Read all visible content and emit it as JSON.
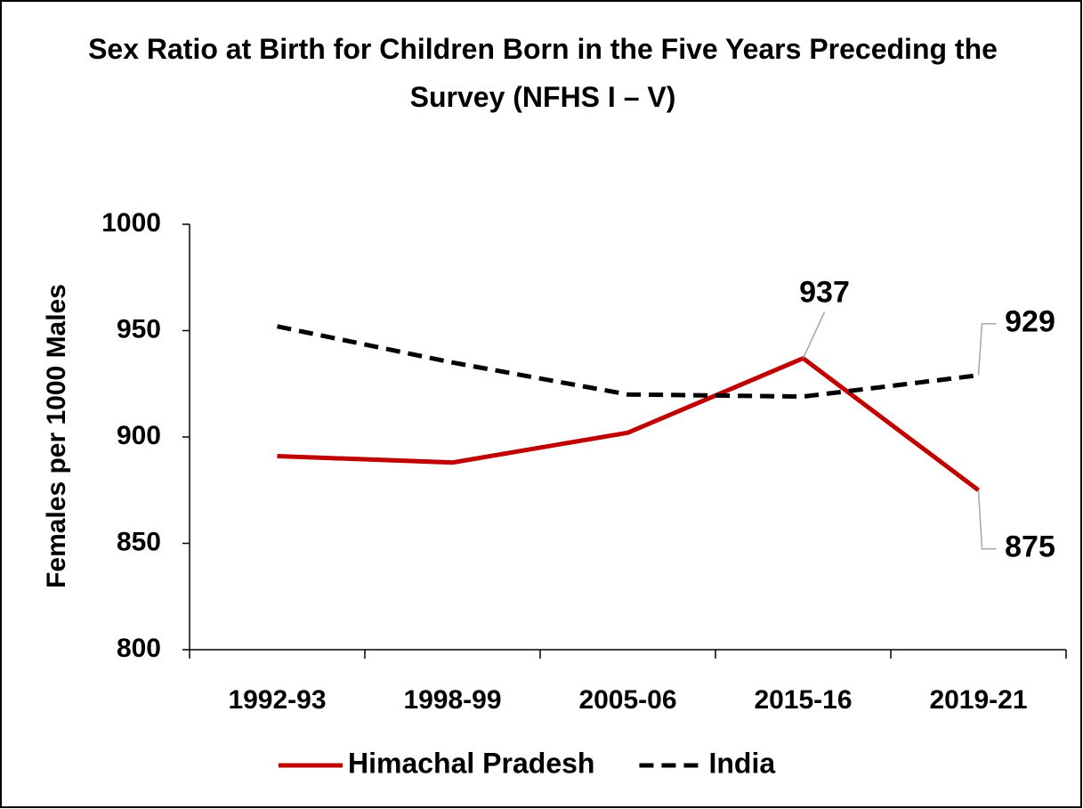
{
  "chart_data": {
    "type": "line",
    "title": "Sex Ratio at Birth for Children Born in the Five Years Preceding the Survey (NFHS I – V)",
    "y_label": "Females per 1000 Males",
    "categories": [
      "1992-93",
      "1998-99",
      "2005-06",
      "2015-16",
      "2019-21"
    ],
    "series": [
      {
        "name": "Himachal Pradesh",
        "color": "#c00000",
        "dash": false,
        "values": [
          891,
          888,
          902,
          937,
          875
        ],
        "value_labels": [
          null,
          null,
          null,
          "937",
          "875"
        ]
      },
      {
        "name": "India",
        "color": "#000000",
        "dash": true,
        "values": [
          952,
          935,
          920,
          919,
          929
        ],
        "value_labels": [
          null,
          null,
          null,
          null,
          "929"
        ]
      }
    ],
    "ylim": [
      800,
      1000
    ],
    "yticks": [
      800,
      850,
      900,
      950,
      1000
    ],
    "grid": false,
    "legend": "bottom"
  }
}
